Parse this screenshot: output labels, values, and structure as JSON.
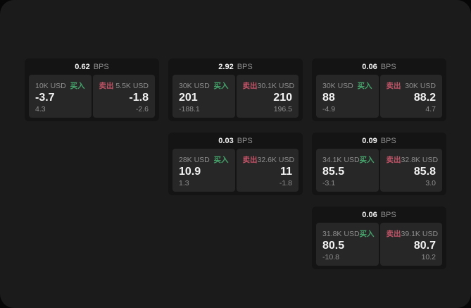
{
  "colors": {
    "outer_bg": "#070707",
    "window_bg": "#1b1b1b",
    "card_bg": "#141414",
    "panel_bg": "#272727",
    "text_primary": "#f2f2f2",
    "text_secondary": "#8e8e8e",
    "buy_green": "#46a46c",
    "sell_red": "#c25468"
  },
  "labels": {
    "bps_unit": "BPS",
    "buy": "买入",
    "sell": "卖出"
  },
  "cards": [
    {
      "bps": "0.62",
      "buy": {
        "amount": "10K USD",
        "price": "-3.7",
        "delta": "4.3"
      },
      "sell": {
        "amount": "5.5K USD",
        "price": "-1.8",
        "delta": "-2.6"
      }
    },
    {
      "bps": "2.92",
      "buy": {
        "amount": "30K USD",
        "price": "201",
        "delta": "-188.1"
      },
      "sell": {
        "amount": "30.1K USD",
        "price": "210",
        "delta": "196.5"
      }
    },
    {
      "bps": "0.06",
      "buy": {
        "amount": "30K USD",
        "price": "88",
        "delta": "-4.9"
      },
      "sell": {
        "amount": "30K USD",
        "price": "88.2",
        "delta": "4.7"
      }
    },
    {
      "bps": "0.03",
      "buy": {
        "amount": "28K USD",
        "price": "10.9",
        "delta": "1.3"
      },
      "sell": {
        "amount": "32.6K USD",
        "price": "11",
        "delta": "-1.8"
      }
    },
    {
      "bps": "0.09",
      "buy": {
        "amount": "34.1K USD",
        "price": "85.5",
        "delta": "-3.1"
      },
      "sell": {
        "amount": "32.8K USD",
        "price": "85.8",
        "delta": "3.0"
      }
    },
    {
      "bps": "0.06",
      "buy": {
        "amount": "31.8K USD",
        "price": "80.5",
        "delta": "-10.8"
      },
      "sell": {
        "amount": "39.1K USD",
        "price": "80.7",
        "delta": "10.2"
      }
    }
  ]
}
